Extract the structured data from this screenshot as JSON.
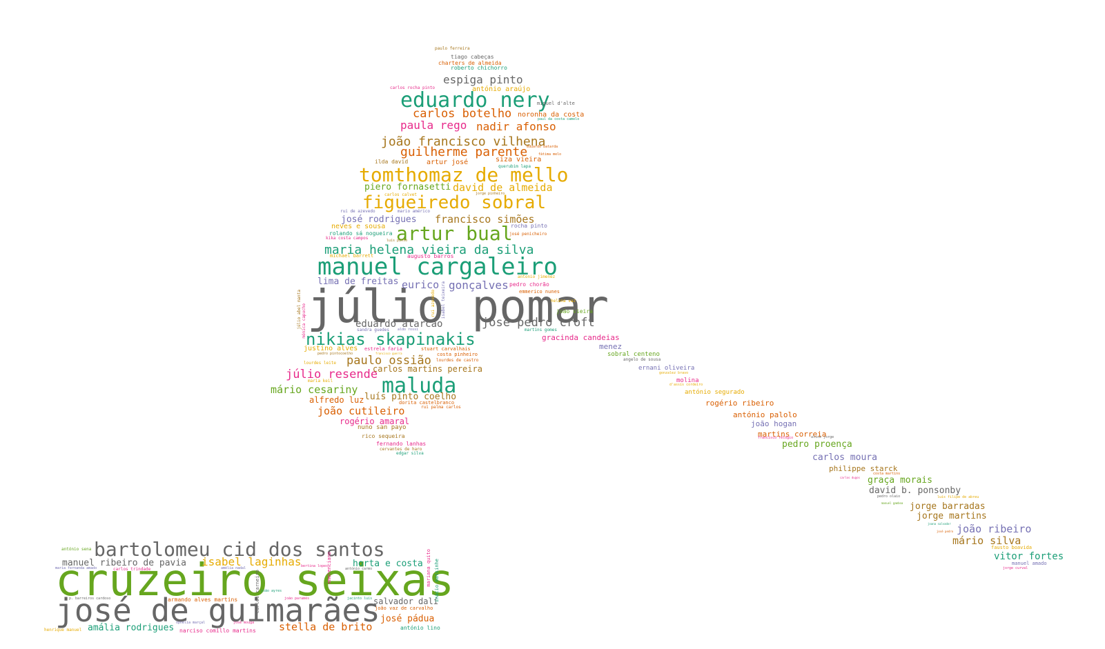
{
  "colors": {
    "gray": "#666666",
    "green": "#66a61e",
    "teal": "#1b9e77",
    "orange": "#d95f02",
    "purple": "#7570b3",
    "magenta": "#e7298a",
    "gold": "#e6ab02",
    "brown": "#a6761d"
  },
  "words": [
    "júlio pomar",
    "cruzeiro seixas",
    "josé de guimarães",
    "manuel cargaleiro",
    "bartolomeu cid dos santos",
    "tomthomaz de mello",
    "maluda",
    "nikias skapinakis",
    "figueiredo sobral",
    "eduardo nery",
    "artur bual",
    "maria helena vieira da silva",
    "joão francisco vilhena",
    "guilherme parente",
    "carlos botelho",
    "paula rego",
    "nadir afonso",
    "espiga pinto",
    "piero fornasetti",
    "david de almeida",
    "josé rodrigues",
    "francisco simões",
    "lima de freitas",
    "eurico",
    "gonçalves",
    "eduardo alarcão",
    "josé pedro croft",
    "paulo ossião",
    "júlio resende",
    "mário cesariny",
    "luís pinto coelho",
    "joão cutileiro",
    "alfredo luz",
    "rogério amaral",
    "carlos martins pereira",
    "isabel laginhas",
    "manuel ribeiro de pavia",
    "horta e costa",
    "stella de brito",
    "amália rodrigues",
    "salvador dalí",
    "josé pádua",
    "joão ribeiro",
    "mário silva",
    "vitor fortes",
    "carlos moura",
    "david b. ponsonby",
    "jorge barradas",
    "jorge martins",
    "graça morais",
    "philippe starck",
    "pedro proença",
    "martins correia",
    "joão hogan",
    "antónio palolo",
    "rogério ribeiro",
    "antónio segurado",
    "molina",
    "ernani oliveira",
    "sobral centeno",
    "menez",
    "gracinda candeias",
    "joão vieira",
    "pedro chorão",
    "antonio jimenez",
    "emmerico nunes",
    "helena vaz",
    "rocha pinto",
    "josé penicheiro",
    "neves e sousa",
    "rolando sá nogueira",
    "kika costa campos",
    "michael barrett",
    "augusto barros",
    "artur josé",
    "siza vieira",
    "ilda david",
    "querubim lapa",
    "noronha da costa",
    "miguel d'alte",
    "antónio araújo",
    "tiago cabeças",
    "charters de almeida",
    "roberto chichorro",
    "paulo ferreira",
    "carlos rocha pinto",
    "paul da costa camelo",
    "justino alves",
    "estrela faria",
    "stuart carvalhais",
    "costa pinheiro",
    "lourdes de castro",
    "dorita castelbranco",
    "rui palma carlos",
    "nuno san payo",
    "rico sequeira",
    "fernando lanhas",
    "cervantes de haro",
    "edgar silva",
    "maria keil",
    "lourdes leite",
    "sandra guedes",
    "martins gomes",
    "carlos calvet",
    "jorge pinheiro",
    "rui de azevedo",
    "mario américo",
    "angelo de sousa",
    "gonzalez bravo",
    "d'assis cordeiro",
    "luís filipe de abreu",
    "pedro olaio",
    "costa martins",
    "fausto boavida",
    "manuel amado",
    "jorge curval",
    "joana salvador",
    "alice jorge",
    "francisco relógio",
    "manuel gamboa",
    "josé pedro",
    "carlos dugos",
    "eduardo batarda",
    "fátima melo",
    "júlio abel manta",
    "mónica capucho",
    "rui azevedo",
    "isabel teixeira",
    "antónio sena",
    "carlos trindade",
    "maria fernanda amado",
    "armando alves martins",
    "narciso comillo martins",
    "henrique manuel",
    "joão vaz de carvalho",
    "antónio lino",
    "mariana quito",
    "inácio matsinhe",
    "emerenciano",
    "carlos carneiro",
    "joão ayres",
    "joão paramés",
    "jacinto luís",
    "antónio carmo",
    "bertina lopes",
    "amélia nadal",
    "josé mouga",
    "ophelia marçal",
    "p. barreiros cardoso",
    "pedro pintocoelho",
    "francisco guerra",
    "aldo rossi",
    "luís pinto"
  ]
}
